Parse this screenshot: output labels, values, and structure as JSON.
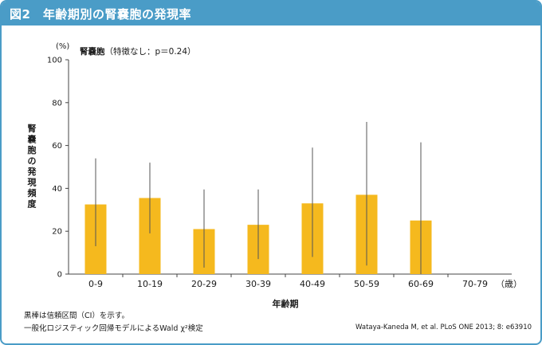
{
  "figure_title": "図2　年齢期別の腎嚢胞の発現率",
  "chart_data": {
    "type": "bar",
    "title": "腎嚢胞",
    "subtitle": "（特徴なし：p＝0.24）",
    "categories": [
      "0-9",
      "10-19",
      "20-29",
      "30-39",
      "40-49",
      "50-59",
      "60-69",
      "70-79"
    ],
    "values": [
      32.5,
      35.5,
      21,
      23,
      33,
      37,
      25,
      0
    ],
    "ci_low": [
      13,
      19,
      3,
      7,
      8,
      4,
      0,
      null
    ],
    "ci_high": [
      54,
      52,
      39.5,
      39.5,
      59,
      71,
      61.5,
      null
    ],
    "ylim": [
      0,
      100
    ],
    "yticks": [
      0,
      20,
      40,
      60,
      80,
      100
    ],
    "y_unit": "(%)",
    "x_unit": "（歳）",
    "xlabel": "年齢期",
    "ylabel": "腎嚢胞の発現頻度",
    "bar_color": "#f5b91e",
    "ci_color": "#555555",
    "grid": false
  },
  "notes": {
    "line1": "黒棒は信頼区間（CI）を示す。",
    "line2": "一般化ロジスティック回帰モデルによるWald χ²検定"
  },
  "citation": "Wataya-Kaneda M, et al. PLoS ONE 2013; 8: e63910"
}
